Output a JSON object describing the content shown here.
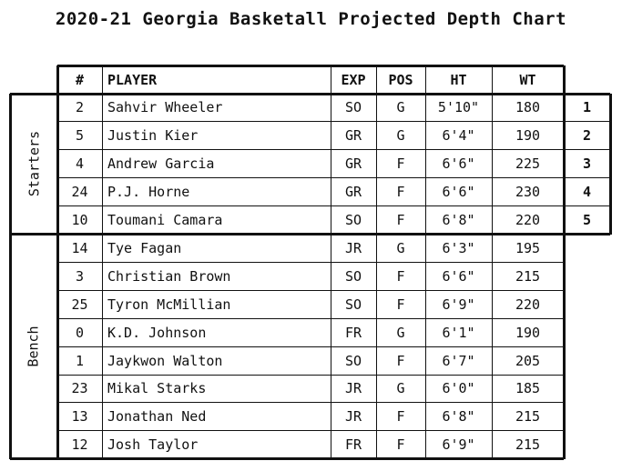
{
  "title": "2020-21 Georgia Basketall Projected Depth Chart",
  "columns": [
    "#",
    "PLAYER",
    "EXP",
    "POS",
    "HT",
    "WT"
  ],
  "groups": [
    {
      "label": "Starters"
    },
    {
      "label": "Bench"
    }
  ],
  "starters": [
    {
      "num": "2",
      "player": "Sahvir Wheeler",
      "exp": "SO",
      "pos": "G",
      "ht": "5'10\"",
      "wt": "180",
      "rank": "1"
    },
    {
      "num": "5",
      "player": "Justin Kier",
      "exp": "GR",
      "pos": "G",
      "ht": "6'4\"",
      "wt": "190",
      "rank": "2"
    },
    {
      "num": "4",
      "player": "Andrew Garcia",
      "exp": "GR",
      "pos": "F",
      "ht": "6'6\"",
      "wt": "225",
      "rank": "3"
    },
    {
      "num": "24",
      "player": "P.J. Horne",
      "exp": "GR",
      "pos": "F",
      "ht": "6'6\"",
      "wt": "230",
      "rank": "4"
    },
    {
      "num": "10",
      "player": "Toumani Camara",
      "exp": "SO",
      "pos": "F",
      "ht": "6'8\"",
      "wt": "220",
      "rank": "5"
    }
  ],
  "bench": [
    {
      "num": "14",
      "player": "Tye Fagan",
      "exp": "JR",
      "pos": "G",
      "ht": "6'3\"",
      "wt": "195"
    },
    {
      "num": "3",
      "player": "Christian Brown",
      "exp": "SO",
      "pos": "F",
      "ht": "6'6\"",
      "wt": "215"
    },
    {
      "num": "25",
      "player": "Tyron McMillian",
      "exp": "SO",
      "pos": "F",
      "ht": "6'9\"",
      "wt": "220"
    },
    {
      "num": "0",
      "player": "K.D. Johnson",
      "exp": "FR",
      "pos": "G",
      "ht": "6'1\"",
      "wt": "190"
    },
    {
      "num": "1",
      "player": "Jaykwon Walton",
      "exp": "SO",
      "pos": "F",
      "ht": "6'7\"",
      "wt": "205"
    },
    {
      "num": "23",
      "player": "Mikal Starks",
      "exp": "JR",
      "pos": "G",
      "ht": "6'0\"",
      "wt": "185"
    },
    {
      "num": "13",
      "player": "Jonathan Ned",
      "exp": "JR",
      "pos": "F",
      "ht": "6'8\"",
      "wt": "215"
    },
    {
      "num": "12",
      "player": "Josh Taylor",
      "exp": "FR",
      "pos": "F",
      "ht": "6'9\"",
      "wt": "215"
    }
  ]
}
